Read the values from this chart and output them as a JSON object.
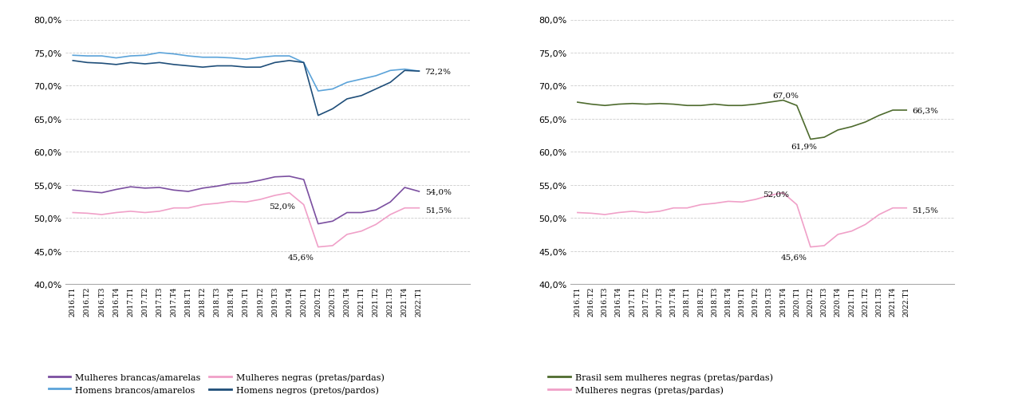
{
  "x_labels": [
    "2016.T1",
    "2016.T2",
    "2016.T3",
    "2016.T4",
    "2017.T1",
    "2017.T2",
    "2017.T3",
    "2017.T4",
    "2018.T1",
    "2018.T2",
    "2018.T3",
    "2018.T4",
    "2019.T1",
    "2019.T2",
    "2019.T3",
    "2019.T4",
    "2020.T1",
    "2020.T2",
    "2020.T3",
    "2020.T4",
    "2021.T1",
    "2021.T2",
    "2021.T3",
    "2021.T4",
    "2022.T1"
  ],
  "left": {
    "mulheres_brancas": [
      54.2,
      54.0,
      53.8,
      54.3,
      54.7,
      54.5,
      54.6,
      54.2,
      54.0,
      54.5,
      54.8,
      55.2,
      55.3,
      55.7,
      56.2,
      56.3,
      55.8,
      49.1,
      49.5,
      50.8,
      50.8,
      51.2,
      52.4,
      54.6,
      54.0
    ],
    "mulheres_negras": [
      50.8,
      50.7,
      50.5,
      50.8,
      51.0,
      50.8,
      51.0,
      51.5,
      51.5,
      52.0,
      52.2,
      52.5,
      52.4,
      52.8,
      53.4,
      53.8,
      52.0,
      45.6,
      45.8,
      47.5,
      48.0,
      49.0,
      50.5,
      51.5,
      51.5
    ],
    "homens_brancos": [
      74.6,
      74.5,
      74.5,
      74.2,
      74.5,
      74.6,
      75.0,
      74.8,
      74.5,
      74.3,
      74.3,
      74.2,
      74.0,
      74.3,
      74.5,
      74.5,
      73.5,
      69.2,
      69.5,
      70.5,
      71.0,
      71.5,
      72.3,
      72.5,
      72.2
    ],
    "homens_negros": [
      73.8,
      73.5,
      73.4,
      73.2,
      73.5,
      73.3,
      73.5,
      73.2,
      73.0,
      72.8,
      73.0,
      73.0,
      72.8,
      72.8,
      73.5,
      73.8,
      73.5,
      65.5,
      66.5,
      68.0,
      68.5,
      69.5,
      70.5,
      72.3,
      72.2
    ]
  },
  "right": {
    "brasil_sem_negras": [
      67.5,
      67.2,
      67.0,
      67.2,
      67.3,
      67.2,
      67.3,
      67.2,
      67.0,
      67.0,
      67.2,
      67.0,
      67.0,
      67.2,
      67.5,
      67.8,
      67.0,
      61.9,
      62.2,
      63.3,
      63.8,
      64.5,
      65.5,
      66.3,
      66.3
    ],
    "mulheres_negras": [
      50.8,
      50.7,
      50.5,
      50.8,
      51.0,
      50.8,
      51.0,
      51.5,
      51.5,
      52.0,
      52.2,
      52.5,
      52.4,
      52.8,
      53.4,
      53.8,
      52.0,
      45.6,
      45.8,
      47.5,
      48.0,
      49.0,
      50.5,
      51.5,
      51.5
    ]
  },
  "colors": {
    "mulheres_brancas": "#7B4FA0",
    "mulheres_negras_left": "#F0A0C8",
    "homens_brancos": "#5BA3D9",
    "homens_negros": "#1F4E79",
    "brasil_sem_negras": "#4E6B2E",
    "mulheres_negras_right": "#F0A0C8"
  },
  "ylim": [
    40.0,
    80.0
  ],
  "yticks": [
    40.0,
    45.0,
    50.0,
    55.0,
    60.0,
    65.0,
    70.0,
    75.0,
    80.0
  ],
  "background_color": "#FFFFFF",
  "grid_color": "#CCCCCC",
  "legend_left": [
    {
      "label": "Mulheres brancas/amarelas",
      "color": "#7B4FA0"
    },
    {
      "label": "Homens brancos/amarelos",
      "color": "#5BA3D9"
    },
    {
      "label": "Mulheres negras (pretas/pardas)",
      "color": "#F0A0C8"
    },
    {
      "label": "Homens negros (pretos/pardos)",
      "color": "#1F4E79"
    }
  ],
  "legend_right": [
    {
      "label": "Brasil sem mulheres negras (pretas/pardas)",
      "color": "#4E6B2E"
    },
    {
      "label": "Mulheres negras (pretas/pardas)",
      "color": "#F0A0C8"
    }
  ]
}
